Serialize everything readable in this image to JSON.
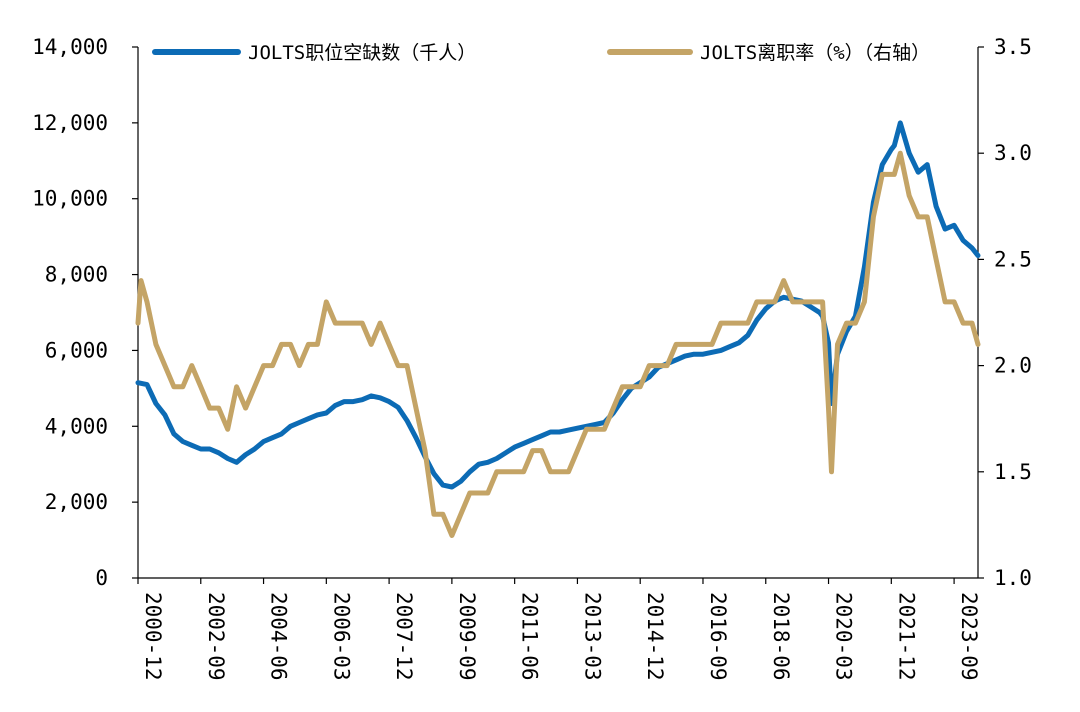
{
  "chart_data": {
    "type": "line",
    "title": "",
    "xlabel": "",
    "ylabel": "",
    "y2label": "",
    "grid": false,
    "legend_position": "top",
    "x_range": [
      "2000-12",
      "2024-05"
    ],
    "ylim": [
      0,
      14000
    ],
    "y2lim": [
      1.0,
      3.5
    ],
    "x_ticks": [
      "2000-12",
      "2002-09",
      "2004-06",
      "2006-03",
      "2007-12",
      "2009-09",
      "2011-06",
      "2013-03",
      "2014-12",
      "2016-09",
      "2018-06",
      "2020-03",
      "2021-12",
      "2023-09"
    ],
    "y_ticks": [
      "0",
      "2,000",
      "4,000",
      "6,000",
      "8,000",
      "10,000",
      "12,000",
      "14,000"
    ],
    "y2_ticks": [
      "1.0",
      "1.5",
      "2.0",
      "2.5",
      "3.0",
      "3.5"
    ],
    "series": [
      {
        "name": "JOLTS职位空缺数（千人）",
        "axis": "left",
        "color": "#0C6BB5",
        "points": [
          [
            "2000-12",
            5150
          ],
          [
            "2001-03",
            5100
          ],
          [
            "2001-06",
            4600
          ],
          [
            "2001-09",
            4300
          ],
          [
            "2001-12",
            3800
          ],
          [
            "2002-03",
            3600
          ],
          [
            "2002-06",
            3500
          ],
          [
            "2002-09",
            3400
          ],
          [
            "2002-12",
            3400
          ],
          [
            "2003-03",
            3300
          ],
          [
            "2003-06",
            3150
          ],
          [
            "2003-09",
            3050
          ],
          [
            "2003-12",
            3250
          ],
          [
            "2004-03",
            3400
          ],
          [
            "2004-06",
            3600
          ],
          [
            "2004-09",
            3700
          ],
          [
            "2004-12",
            3800
          ],
          [
            "2005-03",
            4000
          ],
          [
            "2005-06",
            4100
          ],
          [
            "2005-09",
            4200
          ],
          [
            "2005-12",
            4300
          ],
          [
            "2006-03",
            4350
          ],
          [
            "2006-06",
            4550
          ],
          [
            "2006-09",
            4650
          ],
          [
            "2006-12",
            4650
          ],
          [
            "2007-03",
            4700
          ],
          [
            "2007-06",
            4800
          ],
          [
            "2007-09",
            4750
          ],
          [
            "2007-12",
            4650
          ],
          [
            "2008-03",
            4500
          ],
          [
            "2008-06",
            4150
          ],
          [
            "2008-09",
            3700
          ],
          [
            "2008-12",
            3200
          ],
          [
            "2009-03",
            2750
          ],
          [
            "2009-06",
            2450
          ],
          [
            "2009-09",
            2400
          ],
          [
            "2009-12",
            2550
          ],
          [
            "2010-03",
            2800
          ],
          [
            "2010-06",
            3000
          ],
          [
            "2010-09",
            3050
          ],
          [
            "2010-12",
            3150
          ],
          [
            "2011-03",
            3300
          ],
          [
            "2011-06",
            3450
          ],
          [
            "2011-09",
            3550
          ],
          [
            "2011-12",
            3650
          ],
          [
            "2012-03",
            3750
          ],
          [
            "2012-06",
            3850
          ],
          [
            "2012-09",
            3850
          ],
          [
            "2012-12",
            3900
          ],
          [
            "2013-03",
            3950
          ],
          [
            "2013-06",
            4000
          ],
          [
            "2013-09",
            4050
          ],
          [
            "2013-12",
            4100
          ],
          [
            "2014-03",
            4350
          ],
          [
            "2014-06",
            4700
          ],
          [
            "2014-09",
            5000
          ],
          [
            "2014-12",
            5150
          ],
          [
            "2015-03",
            5300
          ],
          [
            "2015-06",
            5550
          ],
          [
            "2015-09",
            5650
          ],
          [
            "2015-12",
            5750
          ],
          [
            "2016-03",
            5850
          ],
          [
            "2016-06",
            5900
          ],
          [
            "2016-09",
            5900
          ],
          [
            "2016-12",
            5950
          ],
          [
            "2017-03",
            6000
          ],
          [
            "2017-06",
            6100
          ],
          [
            "2017-09",
            6200
          ],
          [
            "2017-12",
            6400
          ],
          [
            "2018-03",
            6800
          ],
          [
            "2018-06",
            7100
          ],
          [
            "2018-09",
            7300
          ],
          [
            "2018-12",
            7400
          ],
          [
            "2019-03",
            7350
          ],
          [
            "2019-06",
            7300
          ],
          [
            "2019-09",
            7150
          ],
          [
            "2019-12",
            7000
          ],
          [
            "2020-01",
            6900
          ],
          [
            "2020-03",
            6200
          ],
          [
            "2020-04",
            4600
          ],
          [
            "2020-06",
            5900
          ],
          [
            "2020-09",
            6500
          ],
          [
            "2020-12",
            6900
          ],
          [
            "2021-03",
            8200
          ],
          [
            "2021-06",
            9900
          ],
          [
            "2021-09",
            10900
          ],
          [
            "2021-12",
            11300
          ],
          [
            "2022-01",
            11400
          ],
          [
            "2022-03",
            12000
          ],
          [
            "2022-06",
            11200
          ],
          [
            "2022-09",
            10700
          ],
          [
            "2022-12",
            10900
          ],
          [
            "2023-03",
            9800
          ],
          [
            "2023-06",
            9200
          ],
          [
            "2023-09",
            9300
          ],
          [
            "2023-12",
            8900
          ],
          [
            "2024-03",
            8700
          ],
          [
            "2024-05",
            8500
          ]
        ]
      },
      {
        "name": "JOLTS离职率（%）（右轴）",
        "axis": "right",
        "color": "#C4A466",
        "points": [
          [
            "2000-12",
            2.2
          ],
          [
            "2001-01",
            2.4
          ],
          [
            "2001-03",
            2.3
          ],
          [
            "2001-06",
            2.1
          ],
          [
            "2001-09",
            2.0
          ],
          [
            "2001-12",
            1.9
          ],
          [
            "2002-03",
            1.9
          ],
          [
            "2002-06",
            2.0
          ],
          [
            "2002-09",
            1.9
          ],
          [
            "2002-12",
            1.8
          ],
          [
            "2003-03",
            1.8
          ],
          [
            "2003-06",
            1.7
          ],
          [
            "2003-09",
            1.9
          ],
          [
            "2003-12",
            1.8
          ],
          [
            "2004-03",
            1.9
          ],
          [
            "2004-06",
            2.0
          ],
          [
            "2004-09",
            2.0
          ],
          [
            "2004-12",
            2.1
          ],
          [
            "2005-03",
            2.1
          ],
          [
            "2005-06",
            2.0
          ],
          [
            "2005-09",
            2.1
          ],
          [
            "2005-12",
            2.1
          ],
          [
            "2006-03",
            2.3
          ],
          [
            "2006-06",
            2.2
          ],
          [
            "2006-09",
            2.2
          ],
          [
            "2006-12",
            2.2
          ],
          [
            "2007-03",
            2.2
          ],
          [
            "2007-06",
            2.1
          ],
          [
            "2007-09",
            2.2
          ],
          [
            "2007-12",
            2.1
          ],
          [
            "2008-03",
            2.0
          ],
          [
            "2008-06",
            2.0
          ],
          [
            "2008-09",
            1.8
          ],
          [
            "2008-12",
            1.6
          ],
          [
            "2009-03",
            1.3
          ],
          [
            "2009-06",
            1.3
          ],
          [
            "2009-09",
            1.2
          ],
          [
            "2009-12",
            1.3
          ],
          [
            "2010-03",
            1.4
          ],
          [
            "2010-06",
            1.4
          ],
          [
            "2010-09",
            1.4
          ],
          [
            "2010-12",
            1.5
          ],
          [
            "2011-03",
            1.5
          ],
          [
            "2011-06",
            1.5
          ],
          [
            "2011-09",
            1.5
          ],
          [
            "2011-12",
            1.6
          ],
          [
            "2012-03",
            1.6
          ],
          [
            "2012-06",
            1.5
          ],
          [
            "2012-09",
            1.5
          ],
          [
            "2012-12",
            1.5
          ],
          [
            "2013-03",
            1.6
          ],
          [
            "2013-06",
            1.7
          ],
          [
            "2013-09",
            1.7
          ],
          [
            "2013-12",
            1.7
          ],
          [
            "2014-03",
            1.8
          ],
          [
            "2014-06",
            1.9
          ],
          [
            "2014-09",
            1.9
          ],
          [
            "2014-12",
            1.9
          ],
          [
            "2015-03",
            2.0
          ],
          [
            "2015-06",
            2.0
          ],
          [
            "2015-09",
            2.0
          ],
          [
            "2015-12",
            2.1
          ],
          [
            "2016-03",
            2.1
          ],
          [
            "2016-06",
            2.1
          ],
          [
            "2016-09",
            2.1
          ],
          [
            "2016-12",
            2.1
          ],
          [
            "2017-03",
            2.2
          ],
          [
            "2017-06",
            2.2
          ],
          [
            "2017-09",
            2.2
          ],
          [
            "2017-12",
            2.2
          ],
          [
            "2018-03",
            2.3
          ],
          [
            "2018-06",
            2.3
          ],
          [
            "2018-09",
            2.3
          ],
          [
            "2018-12",
            2.4
          ],
          [
            "2019-03",
            2.3
          ],
          [
            "2019-06",
            2.3
          ],
          [
            "2019-09",
            2.3
          ],
          [
            "2019-12",
            2.3
          ],
          [
            "2020-01",
            2.3
          ],
          [
            "2020-03",
            1.8
          ],
          [
            "2020-04",
            1.5
          ],
          [
            "2020-06",
            2.1
          ],
          [
            "2020-09",
            2.2
          ],
          [
            "2020-12",
            2.2
          ],
          [
            "2021-03",
            2.3
          ],
          [
            "2021-06",
            2.7
          ],
          [
            "2021-09",
            2.9
          ],
          [
            "2021-12",
            2.9
          ],
          [
            "2022-01",
            2.9
          ],
          [
            "2022-03",
            3.0
          ],
          [
            "2022-06",
            2.8
          ],
          [
            "2022-09",
            2.7
          ],
          [
            "2022-12",
            2.7
          ],
          [
            "2023-03",
            2.5
          ],
          [
            "2023-06",
            2.3
          ],
          [
            "2023-09",
            2.3
          ],
          [
            "2023-12",
            2.2
          ],
          [
            "2024-03",
            2.2
          ],
          [
            "2024-05",
            2.1
          ]
        ]
      }
    ]
  }
}
